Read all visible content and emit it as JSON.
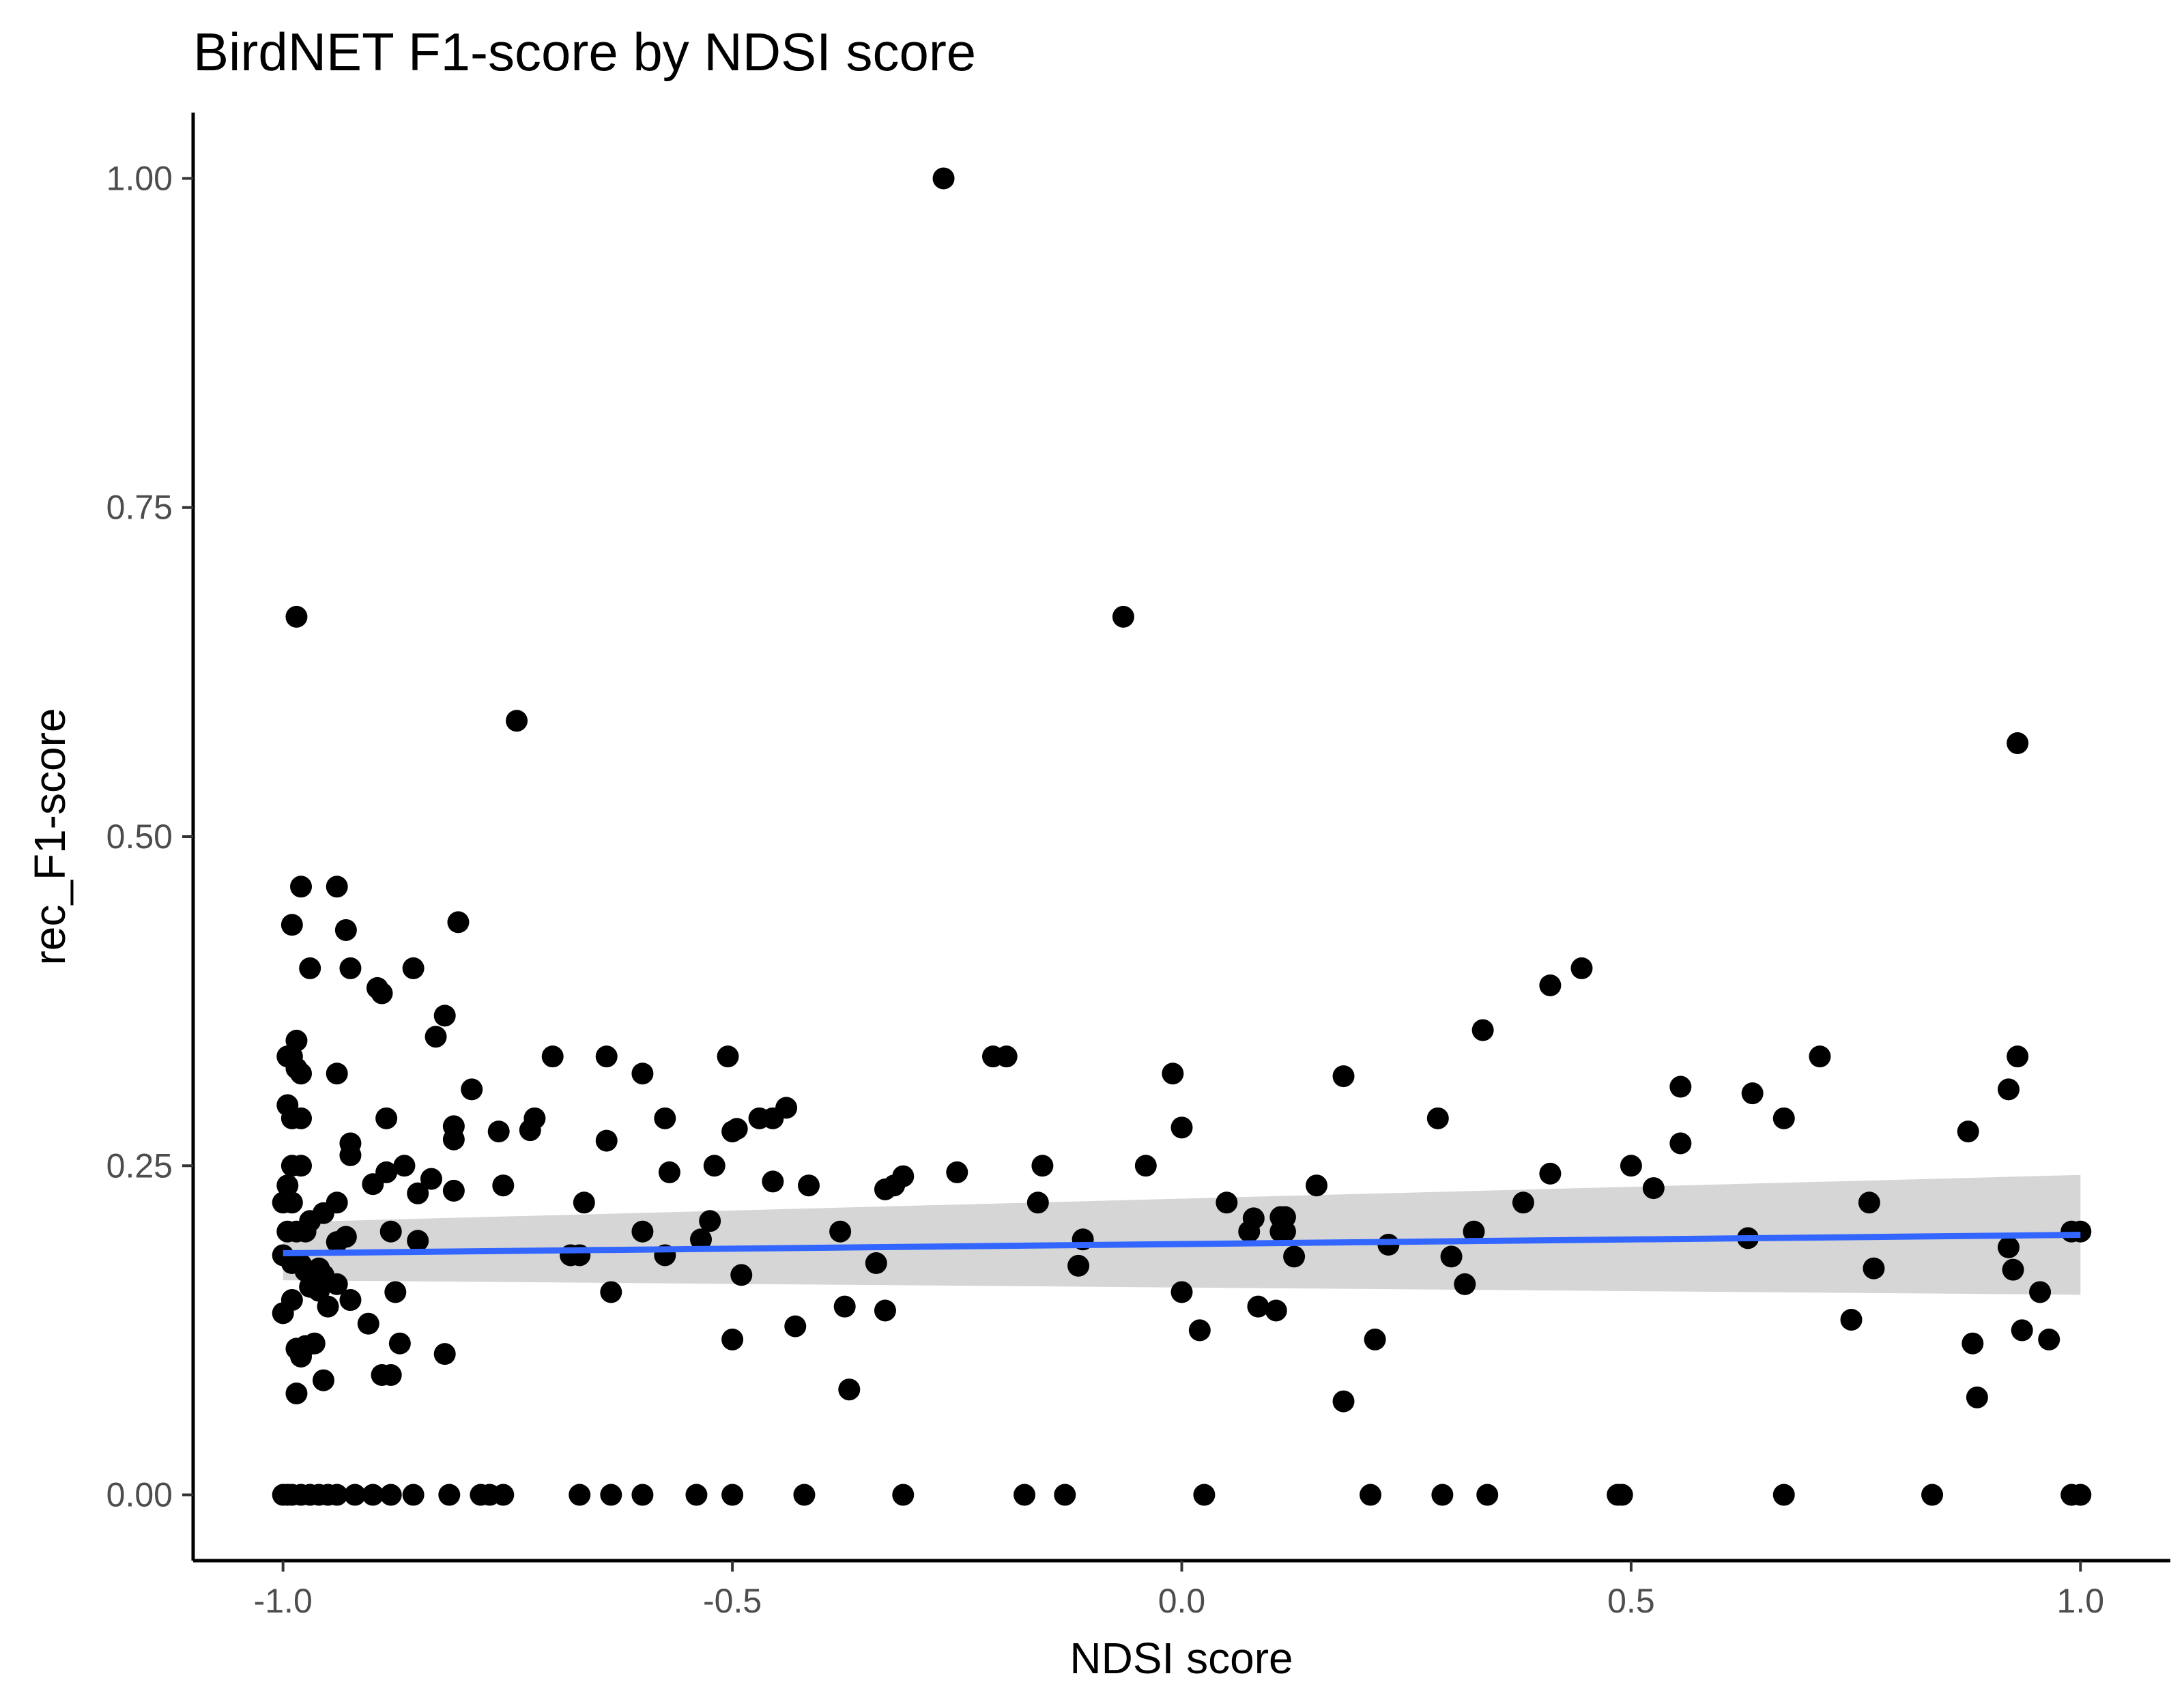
{
  "chart_data": {
    "type": "scatter",
    "title": "BirdNET F1-score by NDSI score",
    "xlabel": "NDSI score",
    "ylabel": "rec_F1-score",
    "xlim": [
      -1.1,
      1.1
    ],
    "ylim": [
      -0.05,
      1.05
    ],
    "x_ticks": [
      -1.0,
      -0.5,
      0.0,
      0.5,
      1.0
    ],
    "x_tick_labels": [
      "-1.0",
      "-0.5",
      "0.0",
      "0.5",
      "1.0"
    ],
    "y_ticks": [
      0.0,
      0.25,
      0.5,
      0.75,
      1.0
    ],
    "y_tick_labels": [
      "0.00",
      "0.25",
      "0.50",
      "0.75",
      "1.00"
    ],
    "grid": false,
    "legend": "none",
    "point_color": "#000000",
    "fit_color": "#3366ff",
    "band_color": "#999999",
    "fit": {
      "method": "linear",
      "x": [
        -1.0,
        1.0
      ],
      "y": [
        0.1835,
        0.1975
      ],
      "ci_lower": [
        0.163,
        0.152
      ],
      "ci_upper": [
        0.207,
        0.243
      ]
    },
    "points": [
      [
        -0.265,
        1.0
      ],
      [
        -0.065,
        0.667
      ],
      [
        -0.985,
        0.667
      ],
      [
        -0.74,
        0.588
      ],
      [
        0.93,
        0.571
      ],
      [
        -0.98,
        0.462
      ],
      [
        -0.94,
        0.462
      ],
      [
        -0.99,
        0.433
      ],
      [
        -0.93,
        0.429
      ],
      [
        -0.805,
        0.435
      ],
      [
        -0.97,
        0.4
      ],
      [
        -0.925,
        0.4
      ],
      [
        -0.855,
        0.4
      ],
      [
        0.445,
        0.4
      ],
      [
        0.41,
        0.387
      ],
      [
        -0.895,
        0.385
      ],
      [
        -0.89,
        0.381
      ],
      [
        -0.82,
        0.364
      ],
      [
        -0.83,
        0.348
      ],
      [
        0.335,
        0.353
      ],
      [
        -0.985,
        0.345
      ],
      [
        -0.995,
        0.333
      ],
      [
        -0.99,
        0.333
      ],
      [
        -0.7,
        0.333
      ],
      [
        -0.64,
        0.333
      ],
      [
        -0.505,
        0.333
      ],
      [
        -0.21,
        0.333
      ],
      [
        -0.195,
        0.333
      ],
      [
        0.71,
        0.333
      ],
      [
        0.93,
        0.333
      ],
      [
        -0.985,
        0.324
      ],
      [
        -0.98,
        0.32
      ],
      [
        -0.94,
        0.32
      ],
      [
        -0.6,
        0.32
      ],
      [
        -0.01,
        0.32
      ],
      [
        0.18,
        0.318
      ],
      [
        -0.79,
        0.308
      ],
      [
        0.555,
        0.31
      ],
      [
        0.92,
        0.308
      ],
      [
        0.635,
        0.305
      ],
      [
        -0.995,
        0.296
      ],
      [
        -0.44,
        0.294
      ],
      [
        -0.99,
        0.286
      ],
      [
        -0.98,
        0.286
      ],
      [
        -0.885,
        0.286
      ],
      [
        -0.72,
        0.286
      ],
      [
        -0.575,
        0.286
      ],
      [
        -0.47,
        0.286
      ],
      [
        -0.455,
        0.286
      ],
      [
        0.285,
        0.286
      ],
      [
        0.67,
        0.286
      ],
      [
        -0.81,
        0.28
      ],
      [
        -0.725,
        0.277
      ],
      [
        -0.76,
        0.276
      ],
      [
        -0.495,
        0.278
      ],
      [
        -0.5,
        0.276
      ],
      [
        0.0,
        0.279
      ],
      [
        -0.81,
        0.27
      ],
      [
        -0.64,
        0.269
      ],
      [
        -0.925,
        0.267
      ],
      [
        0.555,
        0.267
      ],
      [
        -0.925,
        0.258
      ],
      [
        -0.99,
        0.25
      ],
      [
        -0.98,
        0.25
      ],
      [
        -0.865,
        0.25
      ],
      [
        -0.52,
        0.25
      ],
      [
        -0.155,
        0.25
      ],
      [
        -0.04,
        0.25
      ],
      [
        0.5,
        0.25
      ],
      [
        0.875,
        0.276
      ],
      [
        -0.885,
        0.245
      ],
      [
        -0.57,
        0.245
      ],
      [
        -0.25,
        0.245
      ],
      [
        0.41,
        0.244
      ],
      [
        -0.31,
        0.242
      ],
      [
        -0.835,
        0.24
      ],
      [
        -0.9,
        0.236
      ],
      [
        -0.755,
        0.235
      ],
      [
        -0.455,
        0.238
      ],
      [
        -0.415,
        0.235
      ],
      [
        -0.995,
        0.235
      ],
      [
        -0.32,
        0.235
      ],
      [
        -0.33,
        0.232
      ],
      [
        0.15,
        0.235
      ],
      [
        0.525,
        0.233
      ],
      [
        -0.85,
        0.229
      ],
      [
        -0.81,
        0.231
      ],
      [
        -0.99,
        0.222
      ],
      [
        -1.0,
        0.222
      ],
      [
        -0.94,
        0.222
      ],
      [
        -0.665,
        0.222
      ],
      [
        -0.16,
        0.222
      ],
      [
        0.05,
        0.222
      ],
      [
        0.38,
        0.222
      ],
      [
        0.765,
        0.222
      ],
      [
        -0.955,
        0.214
      ],
      [
        -0.97,
        0.208
      ],
      [
        -0.525,
        0.208
      ],
      [
        0.08,
        0.21
      ],
      [
        0.11,
        0.211
      ],
      [
        0.115,
        0.211
      ],
      [
        -0.995,
        0.2
      ],
      [
        -0.985,
        0.2
      ],
      [
        -0.975,
        0.2
      ],
      [
        -0.88,
        0.2
      ],
      [
        -0.6,
        0.2
      ],
      [
        -0.38,
        0.2
      ],
      [
        0.075,
        0.2
      ],
      [
        0.11,
        0.2
      ],
      [
        0.325,
        0.2
      ],
      [
        0.99,
        0.2
      ],
      [
        1.0,
        0.2
      ],
      [
        -0.93,
        0.196
      ],
      [
        -0.94,
        0.192
      ],
      [
        -0.85,
        0.193
      ],
      [
        -0.535,
        0.194
      ],
      [
        -0.11,
        0.194
      ],
      [
        0.23,
        0.19
      ],
      [
        0.115,
        0.2
      ],
      [
        0.63,
        0.195
      ],
      [
        0.92,
        0.188
      ],
      [
        -1.0,
        0.182
      ],
      [
        -0.99,
        0.176
      ],
      [
        -0.98,
        0.175
      ],
      [
        -0.975,
        0.17
      ],
      [
        -0.96,
        0.172
      ],
      [
        -0.955,
        0.167
      ],
      [
        -0.67,
        0.182
      ],
      [
        -0.68,
        0.182
      ],
      [
        -0.575,
        0.182
      ],
      [
        0.125,
        0.181
      ],
      [
        0.3,
        0.181
      ],
      [
        -0.34,
        0.176
      ],
      [
        -0.115,
        0.174
      ],
      [
        -0.49,
        0.167
      ],
      [
        0.77,
        0.172
      ],
      [
        0.925,
        0.171
      ],
      [
        -0.94,
        0.16
      ],
      [
        -0.97,
        0.158
      ],
      [
        -0.96,
        0.155
      ],
      [
        -0.875,
        0.154
      ],
      [
        -0.635,
        0.154
      ],
      [
        0.0,
        0.154
      ],
      [
        0.315,
        0.16
      ],
      [
        0.955,
        0.154
      ],
      [
        -0.99,
        0.148
      ],
      [
        -0.925,
        0.148
      ],
      [
        -1.0,
        0.138
      ],
      [
        -0.95,
        0.143
      ],
      [
        -0.375,
        0.143
      ],
      [
        -0.33,
        0.14
      ],
      [
        0.085,
        0.143
      ],
      [
        0.105,
        0.14
      ],
      [
        0.745,
        0.133
      ],
      [
        -0.905,
        0.13
      ],
      [
        -0.43,
        0.128
      ],
      [
        0.02,
        0.125
      ],
      [
        0.935,
        0.125
      ],
      [
        -0.5,
        0.118
      ],
      [
        0.215,
        0.118
      ],
      [
        0.965,
        0.118
      ],
      [
        0.88,
        0.115
      ],
      [
        -0.965,
        0.115
      ],
      [
        -0.975,
        0.113
      ],
      [
        -0.985,
        0.111
      ],
      [
        -0.87,
        0.115
      ],
      [
        -0.82,
        0.107
      ],
      [
        -0.98,
        0.105
      ],
      [
        -0.89,
        0.091
      ],
      [
        -0.88,
        0.091
      ],
      [
        -0.955,
        0.087
      ],
      [
        -0.37,
        0.08
      ],
      [
        -0.985,
        0.077
      ],
      [
        0.18,
        0.071
      ],
      [
        0.885,
        0.074
      ],
      [
        -1.0,
        0.0
      ],
      [
        -0.995,
        0.0
      ],
      [
        -0.99,
        0.0
      ],
      [
        -0.98,
        0.0
      ],
      [
        -0.97,
        0.0
      ],
      [
        -0.96,
        0.0
      ],
      [
        -0.95,
        0.0
      ],
      [
        -0.94,
        0.0
      ],
      [
        -0.92,
        0.0
      ],
      [
        -0.9,
        0.0
      ],
      [
        -0.88,
        0.0
      ],
      [
        -0.855,
        0.0
      ],
      [
        -0.815,
        0.0
      ],
      [
        -0.78,
        0.0
      ],
      [
        -0.77,
        0.0
      ],
      [
        -0.755,
        0.0
      ],
      [
        -0.67,
        0.0
      ],
      [
        -0.635,
        0.0
      ],
      [
        -0.6,
        0.0
      ],
      [
        -0.54,
        0.0
      ],
      [
        -0.5,
        0.0
      ],
      [
        -0.42,
        0.0
      ],
      [
        -0.31,
        0.0
      ],
      [
        -0.175,
        0.0
      ],
      [
        -0.13,
        0.0
      ],
      [
        0.025,
        0.0
      ],
      [
        0.21,
        0.0
      ],
      [
        0.29,
        0.0
      ],
      [
        0.34,
        0.0
      ],
      [
        0.485,
        0.0
      ],
      [
        0.49,
        0.0
      ],
      [
        0.67,
        0.0
      ],
      [
        0.835,
        0.0
      ],
      [
        0.99,
        0.0
      ],
      [
        1.0,
        0.0
      ]
    ]
  }
}
